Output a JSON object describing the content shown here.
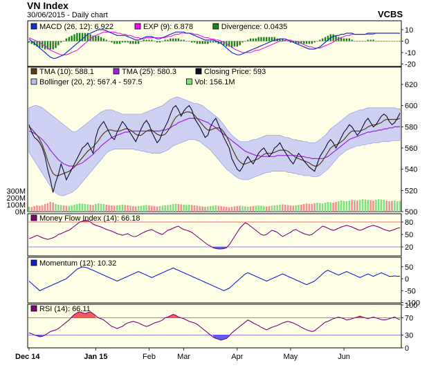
{
  "header": {
    "title": "VN Index",
    "subtitle": "30/06/2015 - Daily chart",
    "brand": "VCBS"
  },
  "colors": {
    "panel_bg": "#ffffe8",
    "border": "#000000",
    "band_fill": "#b8bcf4",
    "band_edge": "#8c90e0",
    "close": "#0a0a30",
    "tma10": "#5a3a1a",
    "tma25": "#a020e0",
    "macd": "#1030d0",
    "signal": "#ee10ee",
    "div_pos": "#208020",
    "vol_up": "#80e080",
    "vol_down": "#f09090",
    "mfi": "#800080",
    "rsi": "#800080",
    "momentum": "#1020d0",
    "overbought_fill": "#f04040",
    "oversold_fill": "#4040f0",
    "level_line": "#e04040",
    "level_line_low": "#6060f0"
  },
  "x_axis": {
    "labels": [
      "Dec 14",
      "Jan 15",
      "Feb",
      "Mar",
      "Apr",
      "May",
      "Jun"
    ]
  },
  "panels": {
    "macd": {
      "legend": [
        {
          "color": "#1030d0",
          "text": "MACD (26, 12): 6.922"
        },
        {
          "color": "#ee10ee",
          "text": "EXP (9): 6.878"
        },
        {
          "color": "#208020",
          "text": "Divergence: 0.0435"
        }
      ],
      "ticks": [
        "10",
        "0",
        "-10",
        "-20"
      ]
    },
    "price": {
      "legend": [
        {
          "color": "#5a3a1a",
          "text": "TMA (10): 588.1"
        },
        {
          "color": "#a020e0",
          "text": "TMA (25): 580.3"
        },
        {
          "color": "#0a0a30",
          "text": "Closing Price: 593"
        },
        {
          "color": "#b8bcf4",
          "text": "Bollinger (20, 2): 567.4 - 597.5"
        },
        {
          "color": "#80e080",
          "text": "Vol: 156.1M"
        }
      ],
      "ticks": [
        "620",
        "600",
        "580",
        "560",
        "540",
        "520",
        "500"
      ],
      "vol_ticks": [
        "300M",
        "200M",
        "100M",
        "0M"
      ]
    },
    "mfi": {
      "legend": [
        {
          "color": "#800080",
          "text": "Money Flow Index (14): 66.18"
        }
      ],
      "ticks": [
        "80",
        "50",
        "20"
      ]
    },
    "momentum": {
      "legend": [
        {
          "color": "#1020d0",
          "text": "Momentum (12): 10.32"
        }
      ],
      "ticks": [
        "50",
        "0",
        "-50",
        "-100"
      ]
    },
    "rsi": {
      "legend": [
        {
          "color": "#800080",
          "text": "RSI (14): 66.11"
        }
      ],
      "ticks": [
        "100",
        "70",
        "30",
        "0"
      ]
    }
  },
  "chart_data": {
    "type": "line",
    "n_bars": 140,
    "x_labels": [
      "Dec 14",
      "Jan 15",
      "Feb",
      "Mar",
      "Apr",
      "May",
      "Jun"
    ],
    "x_label_bars": [
      0,
      25,
      45,
      58,
      78,
      98,
      118
    ],
    "close": [
      582,
      575,
      570,
      568,
      565,
      560,
      552,
      540,
      530,
      518,
      528,
      535,
      545,
      538,
      530,
      535,
      540,
      545,
      550,
      555,
      560,
      562,
      565,
      560,
      555,
      570,
      578,
      582,
      585,
      580,
      575,
      570,
      568,
      575,
      580,
      585,
      582,
      578,
      574,
      570,
      566,
      572,
      578,
      583,
      586,
      582,
      575,
      570,
      565,
      568,
      575,
      580,
      585,
      592,
      598,
      600,
      596,
      590,
      595,
      598,
      600,
      596,
      588,
      584,
      580,
      575,
      570,
      572,
      580,
      585,
      588,
      582,
      576,
      570,
      565,
      560,
      550,
      545,
      540,
      538,
      542,
      548,
      552,
      548,
      545,
      550,
      555,
      558,
      560,
      556,
      552,
      555,
      560,
      562,
      565,
      560,
      556,
      552,
      548,
      545,
      550,
      555,
      552,
      548,
      545,
      542,
      540,
      538,
      545,
      552,
      556,
      560,
      565,
      568,
      565,
      560,
      565,
      570,
      575,
      578,
      582,
      580,
      576,
      572,
      575,
      580,
      585,
      588,
      584,
      580,
      582,
      586,
      590,
      592,
      590,
      585,
      582,
      584,
      588,
      593
    ],
    "tma10": [
      580,
      578,
      575,
      572,
      568,
      563,
      556,
      548,
      541,
      536,
      534,
      534,
      535,
      536,
      537,
      538,
      540,
      542,
      545,
      548,
      551,
      554,
      557,
      559,
      561,
      564,
      567,
      571,
      574,
      576,
      577,
      577,
      576,
      576,
      576,
      577,
      578,
      578,
      577,
      575,
      573,
      572,
      572,
      574,
      576,
      577,
      577,
      575,
      573,
      572,
      572,
      573,
      576,
      580,
      585,
      589,
      591,
      592,
      593,
      594,
      594,
      593,
      591,
      588,
      585,
      582,
      579,
      577,
      577,
      578,
      579,
      579,
      578,
      575,
      571,
      566,
      560,
      555,
      550,
      547,
      545,
      545,
      546,
      547,
      548,
      549,
      550,
      552,
      554,
      555,
      555,
      555,
      556,
      557,
      558,
      558,
      558,
      557,
      555,
      553,
      551,
      550,
      549,
      548,
      547,
      546,
      544,
      543,
      543,
      545,
      548,
      552,
      556,
      560,
      562,
      563,
      564,
      566,
      568,
      571,
      574,
      576,
      576,
      576,
      576,
      577,
      578,
      580,
      581,
      582,
      582,
      583,
      584,
      586,
      587,
      587,
      587,
      587,
      587,
      588
    ],
    "tma25": [
      576,
      575,
      574,
      572,
      570,
      568,
      565,
      562,
      558,
      555,
      552,
      549,
      547,
      545,
      544,
      543,
      543,
      543,
      544,
      545,
      546,
      548,
      550,
      552,
      554,
      557,
      559,
      562,
      564,
      566,
      568,
      570,
      571,
      572,
      573,
      574,
      575,
      575,
      576,
      576,
      576,
      576,
      576,
      576,
      576,
      576,
      576,
      576,
      576,
      576,
      577,
      577,
      578,
      579,
      581,
      582,
      584,
      585,
      586,
      587,
      588,
      588,
      588,
      588,
      587,
      586,
      585,
      584,
      582,
      581,
      579,
      577,
      575,
      573,
      571,
      569,
      567,
      565,
      563,
      561,
      559,
      557,
      556,
      555,
      554,
      553,
      553,
      552,
      552,
      552,
      552,
      552,
      552,
      553,
      553,
      553,
      553,
      553,
      553,
      553,
      553,
      552,
      552,
      552,
      551,
      551,
      550,
      550,
      550,
      550,
      550,
      551,
      552,
      554,
      556,
      558,
      560,
      562,
      564,
      566,
      568,
      569,
      570,
      571,
      572,
      573,
      574,
      575,
      575,
      576,
      576,
      577,
      577,
      578,
      578,
      579,
      579,
      580,
      580,
      580
    ],
    "bollinger_upper": [
      598,
      599,
      600,
      600,
      599,
      598,
      596,
      594,
      592,
      590,
      588,
      586,
      584,
      582,
      580,
      578,
      576,
      575,
      576,
      578,
      580,
      582,
      584,
      586,
      588,
      590,
      592,
      594,
      595,
      596,
      596,
      596,
      595,
      594,
      593,
      592,
      592,
      592,
      592,
      592,
      592,
      592,
      592,
      593,
      594,
      595,
      596,
      597,
      598,
      599,
      600,
      602,
      604,
      606,
      607,
      608,
      608,
      607,
      606,
      605,
      604,
      603,
      602,
      602,
      601,
      600,
      598,
      596,
      594,
      592,
      590,
      588,
      585,
      582,
      578,
      575,
      572,
      570,
      568,
      566,
      566,
      566,
      566,
      567,
      568,
      568,
      569,
      570,
      571,
      572,
      572,
      572,
      572,
      572,
      572,
      571,
      570,
      570,
      569,
      568,
      568,
      567,
      567,
      566,
      566,
      565,
      565,
      565,
      566,
      568,
      570,
      572,
      575,
      578,
      580,
      582,
      584,
      586,
      588,
      590,
      592,
      593,
      594,
      595,
      596,
      596,
      597,
      598,
      598,
      598,
      598,
      598,
      598,
      598,
      598,
      598,
      598,
      598,
      597,
      597
    ],
    "bollinger_lower": [
      556,
      552,
      548,
      544,
      540,
      536,
      532,
      528,
      524,
      521,
      518,
      516,
      515,
      515,
      516,
      517,
      518,
      520,
      522,
      525,
      528,
      531,
      534,
      537,
      540,
      543,
      546,
      549,
      552,
      555,
      557,
      558,
      559,
      559,
      559,
      559,
      559,
      559,
      559,
      559,
      558,
      558,
      557,
      557,
      556,
      556,
      555,
      555,
      555,
      555,
      556,
      557,
      558,
      560,
      562,
      563,
      564,
      565,
      566,
      567,
      568,
      568,
      568,
      567,
      566,
      564,
      562,
      560,
      558,
      555,
      552,
      549,
      546,
      543,
      540,
      538,
      536,
      534,
      532,
      531,
      530,
      530,
      530,
      531,
      532,
      533,
      534,
      535,
      536,
      537,
      537,
      538,
      538,
      538,
      538,
      538,
      538,
      537,
      537,
      536,
      536,
      535,
      535,
      534,
      534,
      534,
      533,
      533,
      533,
      534,
      536,
      538,
      540,
      543,
      546,
      549,
      552,
      554,
      556,
      558,
      559,
      560,
      561,
      562,
      562,
      563,
      563,
      564,
      564,
      565,
      565,
      565,
      566,
      566,
      566,
      566,
      567,
      567,
      567,
      567
    ],
    "volume_millions": [
      70,
      65,
      80,
      90,
      85,
      95,
      110,
      120,
      140,
      130,
      110,
      100,
      95,
      90,
      85,
      80,
      90,
      100,
      110,
      120,
      115,
      110,
      105,
      100,
      95,
      110,
      120,
      115,
      110,
      100,
      95,
      90,
      85,
      90,
      95,
      100,
      95,
      90,
      85,
      80,
      75,
      80,
      85,
      90,
      95,
      90,
      85,
      80,
      75,
      80,
      85,
      90,
      95,
      100,
      110,
      115,
      110,
      105,
      100,
      95,
      100,
      95,
      90,
      85,
      80,
      75,
      70,
      75,
      80,
      85,
      90,
      85,
      80,
      75,
      70,
      65,
      70,
      75,
      80,
      85,
      80,
      75,
      70,
      75,
      80,
      85,
      90,
      85,
      80,
      75,
      80,
      85,
      90,
      95,
      100,
      105,
      100,
      95,
      90,
      85,
      90,
      95,
      100,
      110,
      120,
      115,
      110,
      120,
      130,
      125,
      120,
      130,
      140,
      135,
      130,
      140,
      150,
      160,
      155,
      150,
      160,
      170,
      165,
      160,
      170,
      180,
      175,
      170,
      165,
      160,
      170,
      180,
      175,
      170,
      160,
      150,
      155,
      160,
      150,
      156
    ],
    "macd": [
      2,
      0,
      -2,
      -4,
      -6,
      -8,
      -10,
      -12,
      -14,
      -15,
      -15,
      -14,
      -13,
      -12,
      -10,
      -8,
      -6,
      -4,
      -2,
      0,
      2,
      4,
      6,
      7,
      8,
      9,
      10,
      10,
      10,
      9,
      8,
      7,
      6,
      5,
      5,
      5,
      5,
      4,
      3,
      2,
      1,
      1,
      2,
      3,
      4,
      4,
      4,
      3,
      2,
      2,
      3,
      4,
      5,
      6,
      7,
      8,
      8,
      8,
      8,
      7,
      7,
      6,
      5,
      4,
      3,
      2,
      1,
      1,
      1,
      1,
      0,
      -1,
      -2,
      -4,
      -6,
      -8,
      -10,
      -11,
      -12,
      -12,
      -11,
      -10,
      -9,
      -8,
      -7,
      -6,
      -5,
      -4,
      -3,
      -2,
      -1,
      0,
      1,
      1,
      2,
      2,
      2,
      1,
      0,
      -1,
      -2,
      -3,
      -4,
      -5,
      -6,
      -7,
      -7,
      -7,
      -6,
      -5,
      -3,
      -1,
      1,
      3,
      4,
      5,
      5,
      6,
      6,
      7,
      7,
      7,
      6,
      6,
      6,
      6,
      6,
      7,
      7,
      7,
      7,
      7,
      7,
      7,
      7,
      7,
      7,
      7,
      7,
      6.922
    ],
    "signal": [
      3,
      2,
      1,
      0,
      -1,
      -3,
      -4,
      -6,
      -8,
      -9,
      -10,
      -11,
      -12,
      -12,
      -12,
      -11,
      -10,
      -9,
      -8,
      -6,
      -4,
      -2,
      0,
      2,
      4,
      5,
      6,
      7,
      8,
      8,
      8,
      8,
      8,
      7,
      7,
      6,
      6,
      5,
      5,
      4,
      3,
      3,
      2,
      2,
      3,
      3,
      3,
      3,
      3,
      3,
      3,
      3,
      4,
      4,
      5,
      6,
      6,
      7,
      7,
      7,
      7,
      7,
      6,
      6,
      5,
      4,
      3,
      3,
      2,
      2,
      1,
      1,
      0,
      -1,
      -2,
      -4,
      -5,
      -7,
      -8,
      -9,
      -10,
      -10,
      -10,
      -10,
      -9,
      -8,
      -8,
      -7,
      -6,
      -5,
      -4,
      -3,
      -2,
      -1,
      0,
      0,
      1,
      1,
      1,
      0,
      0,
      -1,
      -2,
      -3,
      -4,
      -5,
      -5,
      -6,
      -6,
      -6,
      -5,
      -4,
      -3,
      -2,
      -1,
      1,
      2,
      3,
      4,
      5,
      5,
      6,
      6,
      6,
      6,
      6,
      6,
      6,
      6,
      6,
      7,
      7,
      7,
      7,
      7,
      7,
      7,
      7,
      7,
      6.878
    ],
    "mfi": [
      40,
      42,
      45,
      48,
      45,
      42,
      40,
      38,
      40,
      42,
      45,
      50,
      52,
      55,
      58,
      60,
      65,
      70,
      75,
      80,
      82,
      84,
      83,
      80,
      75,
      72,
      70,
      68,
      65,
      62,
      60,
      58,
      55,
      52,
      50,
      48,
      50,
      52,
      48,
      45,
      45,
      48,
      52,
      55,
      58,
      60,
      62,
      58,
      55,
      52,
      50,
      55,
      60,
      62,
      65,
      68,
      70,
      65,
      62,
      60,
      58,
      55,
      50,
      45,
      40,
      35,
      30,
      25,
      22,
      18,
      16,
      15,
      15,
      16,
      18,
      25,
      35,
      45,
      55,
      65,
      72,
      78,
      75,
      70,
      65,
      60,
      55,
      50,
      48,
      50,
      55,
      60,
      58,
      55,
      50,
      45,
      48,
      52,
      55,
      60,
      62,
      58,
      55,
      52,
      50,
      48,
      50,
      55,
      60,
      65,
      70,
      68,
      65,
      62,
      60,
      62,
      65,
      68,
      70,
      72,
      70,
      68,
      65,
      62,
      60,
      62,
      65,
      68,
      70,
      72,
      70,
      68,
      65,
      62,
      60,
      58,
      60,
      62,
      65,
      66.18
    ],
    "momentum": [
      -10,
      -20,
      -30,
      -40,
      -50,
      -45,
      -40,
      -35,
      -30,
      -25,
      -20,
      -15,
      -10,
      -5,
      0,
      10,
      20,
      30,
      40,
      45,
      50,
      48,
      45,
      40,
      35,
      30,
      25,
      20,
      15,
      10,
      5,
      0,
      -5,
      -10,
      -5,
      0,
      5,
      10,
      15,
      20,
      25,
      30,
      25,
      20,
      15,
      10,
      5,
      10,
      15,
      20,
      25,
      30,
      35,
      40,
      45,
      40,
      35,
      30,
      25,
      20,
      15,
      10,
      5,
      0,
      -5,
      -10,
      -15,
      -20,
      -25,
      -30,
      -35,
      -40,
      -45,
      -50,
      -45,
      -40,
      -30,
      -20,
      -10,
      0,
      10,
      20,
      25,
      20,
      15,
      10,
      5,
      0,
      -5,
      -10,
      -5,
      0,
      5,
      10,
      15,
      20,
      15,
      10,
      5,
      0,
      -5,
      -10,
      -15,
      -20,
      -25,
      -20,
      -15,
      -10,
      0,
      10,
      20,
      30,
      35,
      30,
      25,
      20,
      15,
      20,
      25,
      30,
      25,
      20,
      15,
      10,
      5,
      10,
      15,
      20,
      15,
      10,
      15,
      20,
      25,
      20,
      15,
      10,
      10,
      12,
      10,
      10.32
    ],
    "rsi": [
      35,
      33,
      30,
      28,
      26,
      27,
      30,
      34,
      38,
      40,
      42,
      45,
      50,
      55,
      60,
      65,
      72,
      78,
      82,
      84,
      82,
      80,
      82,
      84,
      80,
      75,
      70,
      68,
      65,
      60,
      55,
      50,
      48,
      45,
      48,
      50,
      55,
      58,
      60,
      62,
      60,
      58,
      55,
      52,
      50,
      52,
      55,
      58,
      60,
      62,
      65,
      70,
      72,
      75,
      78,
      76,
      72,
      70,
      68,
      65,
      62,
      60,
      58,
      55,
      50,
      45,
      40,
      35,
      30,
      25,
      22,
      20,
      18,
      20,
      22,
      28,
      35,
      40,
      45,
      50,
      55,
      60,
      65,
      62,
      58,
      55,
      52,
      48,
      45,
      42,
      45,
      48,
      50,
      52,
      55,
      58,
      60,
      62,
      60,
      58,
      55,
      52,
      48,
      45,
      42,
      40,
      38,
      40,
      45,
      50,
      55,
      60,
      62,
      65,
      68,
      70,
      72,
      70,
      68,
      65,
      66,
      68,
      70,
      72,
      74,
      72,
      70,
      68,
      70,
      72,
      70,
      68,
      66,
      65,
      66,
      68,
      70,
      72,
      68,
      66.11
    ]
  }
}
